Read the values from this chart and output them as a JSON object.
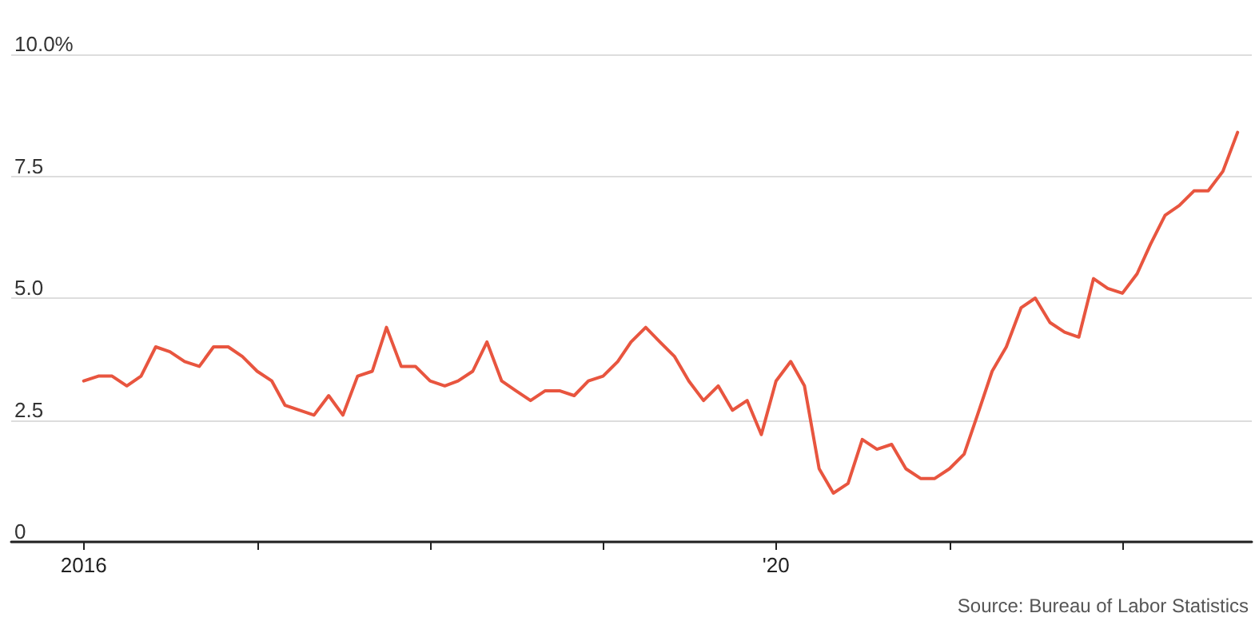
{
  "chart_data": {
    "type": "line",
    "x": [
      "2016-01",
      "2016-02",
      "2016-03",
      "2016-04",
      "2016-05",
      "2016-06",
      "2016-07",
      "2016-08",
      "2016-09",
      "2016-10",
      "2016-11",
      "2016-12",
      "2017-01",
      "2017-02",
      "2017-03",
      "2017-04",
      "2017-05",
      "2017-06",
      "2017-07",
      "2017-08",
      "2017-09",
      "2017-10",
      "2017-11",
      "2017-12",
      "2018-01",
      "2018-02",
      "2018-03",
      "2018-04",
      "2018-05",
      "2018-06",
      "2018-07",
      "2018-08",
      "2018-09",
      "2018-10",
      "2018-11",
      "2018-12",
      "2019-01",
      "2019-02",
      "2019-03",
      "2019-04",
      "2019-05",
      "2019-06",
      "2019-07",
      "2019-08",
      "2019-09",
      "2019-10",
      "2019-11",
      "2019-12",
      "2020-01",
      "2020-02",
      "2020-03",
      "2020-04",
      "2020-05",
      "2020-06",
      "2020-07",
      "2020-08",
      "2020-09",
      "2020-10",
      "2020-11",
      "2020-12",
      "2021-01",
      "2021-02",
      "2021-03",
      "2021-04",
      "2021-05",
      "2021-06",
      "2021-07",
      "2021-08",
      "2021-09",
      "2021-10",
      "2021-11",
      "2021-12",
      "2022-01",
      "2022-02",
      "2022-03",
      "2022-04",
      "2022-05",
      "2022-06",
      "2022-07",
      "2022-08",
      "2022-09"
    ],
    "series": [
      {
        "color": "#e8553f",
        "values": [
          3.3,
          3.4,
          3.4,
          3.2,
          3.4,
          4.0,
          3.9,
          3.7,
          3.6,
          4.0,
          4.0,
          3.8,
          3.5,
          3.3,
          2.8,
          2.7,
          2.6,
          3.0,
          2.6,
          3.4,
          3.5,
          4.4,
          3.6,
          3.6,
          3.3,
          3.2,
          3.3,
          3.5,
          4.1,
          3.3,
          3.1,
          2.9,
          3.1,
          3.1,
          3.0,
          3.3,
          3.4,
          3.7,
          4.1,
          4.4,
          4.1,
          3.8,
          3.3,
          2.9,
          3.2,
          2.7,
          2.9,
          2.2,
          3.3,
          3.7,
          3.2,
          1.5,
          1.0,
          1.2,
          2.1,
          1.9,
          2.0,
          1.5,
          1.3,
          1.3,
          1.5,
          1.8,
          2.6,
          3.5,
          4.0,
          4.8,
          5.0,
          4.5,
          4.3,
          4.2,
          5.4,
          5.2,
          5.1,
          5.5,
          6.1,
          6.7,
          6.9,
          7.2,
          7.2,
          7.6,
          8.4
        ]
      }
    ],
    "xlim": [
      "2015-08",
      "2022-10"
    ],
    "xticks": [
      {
        "value": "2016",
        "label": "2016"
      },
      {
        "value": "2017",
        "label": null
      },
      {
        "value": "2018",
        "label": null
      },
      {
        "value": "2019",
        "label": null
      },
      {
        "value": "2020",
        "label": "'20"
      },
      {
        "value": "2021",
        "label": null
      },
      {
        "value": "2022",
        "label": null
      }
    ],
    "ylim": [
      0,
      10
    ],
    "yticks": [
      {
        "value": 0,
        "label": "0"
      },
      {
        "value": 2.5,
        "label": "2.5"
      },
      {
        "value": 5,
        "label": "5.0"
      },
      {
        "value": 7.5,
        "label": "7.5"
      },
      {
        "value": 10,
        "label": "10.0%"
      }
    ],
    "grid": "y",
    "marker": "none",
    "line_style": "solid",
    "annotations": [
      "Source: Bureau of Labor Statistics"
    ]
  }
}
